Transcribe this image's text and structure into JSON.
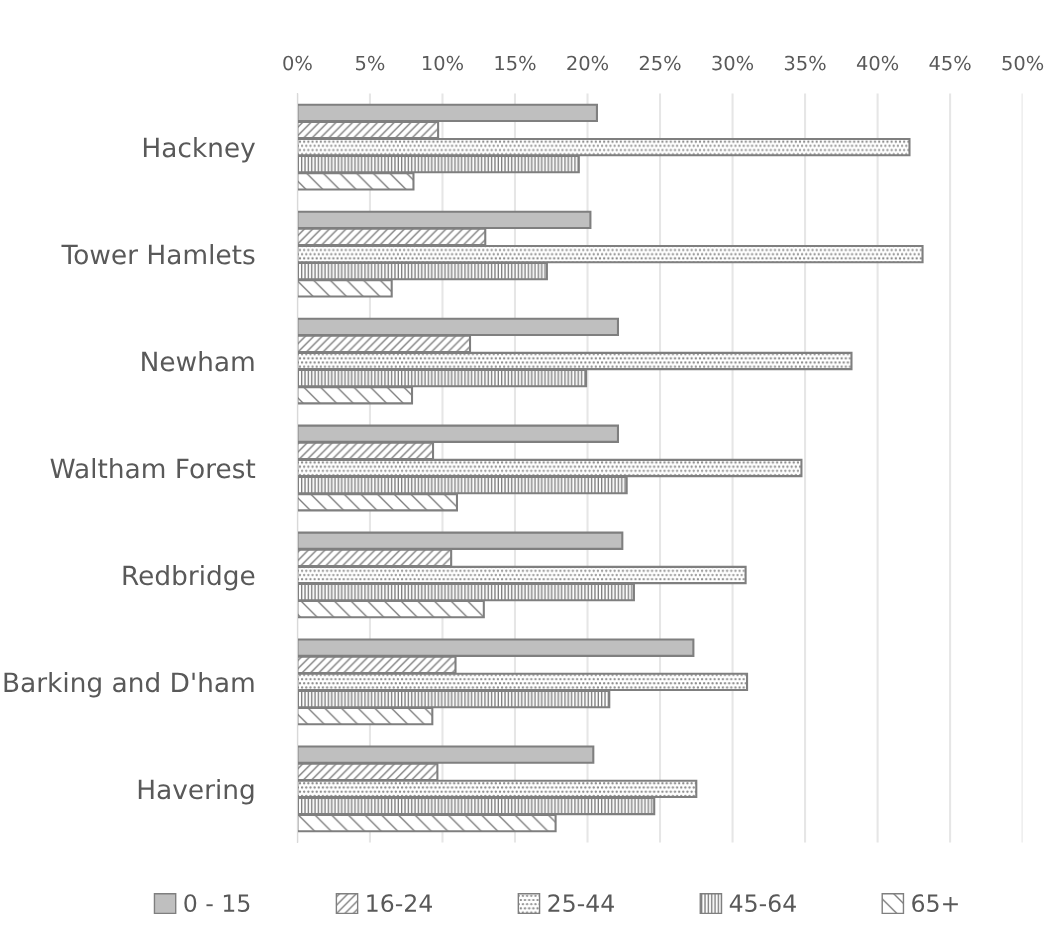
{
  "chart_data": {
    "type": "bar",
    "orientation": "horizontal",
    "categories": [
      "Hackney",
      "Tower Hamlets",
      "Newham",
      "Waltham Forest",
      "Redbridge",
      "Barking and D'ham",
      "Havering"
    ],
    "series": [
      {
        "name": "0 - 15",
        "color": "#bfbfbf",
        "values": [
          20.65,
          20.2,
          22.1,
          22.1,
          22.4,
          27.3,
          20.4
        ]
      },
      {
        "name": "16-24",
        "color": "#7f7f7f",
        "values": [
          9.7,
          12.95,
          11.9,
          9.35,
          10.6,
          10.9,
          9.65
        ]
      },
      {
        "name": "25-44",
        "color": "#7f7f7f",
        "values": [
          42.2,
          43.1,
          38.2,
          34.75,
          30.9,
          31.0,
          27.5
        ]
      },
      {
        "name": "45-64",
        "color": "#7f7f7f",
        "values": [
          19.4,
          17.2,
          19.9,
          22.7,
          23.2,
          21.5,
          24.6
        ]
      },
      {
        "name": "65+",
        "color": "#7f7f7f",
        "values": [
          8.0,
          6.5,
          7.9,
          11.0,
          12.85,
          9.3,
          17.8
        ]
      }
    ],
    "xlim": [
      0,
      50
    ],
    "xticks": [
      {
        "value": 0,
        "label": "0%"
      },
      {
        "value": 5,
        "label": "5%"
      },
      {
        "value": 10,
        "label": "10%"
      },
      {
        "value": 15,
        "label": "15%"
      },
      {
        "value": 20,
        "label": "20%"
      },
      {
        "value": 25,
        "label": "25%"
      },
      {
        "value": 30,
        "label": "30%"
      },
      {
        "value": 35,
        "label": "35%"
      },
      {
        "value": 40,
        "label": "40%"
      },
      {
        "value": 45,
        "label": "45%"
      },
      {
        "value": 50,
        "label": "50%"
      }
    ],
    "grid": "x",
    "legend": "bottom"
  }
}
